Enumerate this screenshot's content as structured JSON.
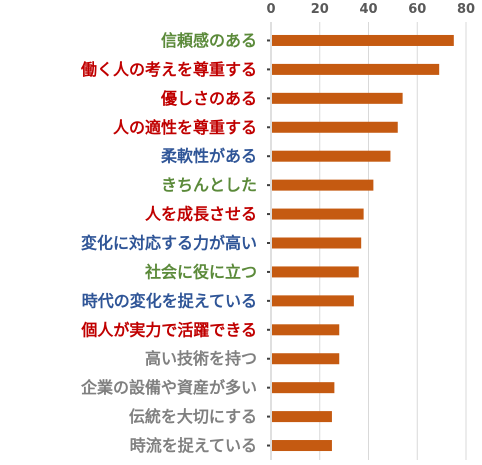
{
  "chart_data": {
    "type": "bar",
    "orientation": "horizontal",
    "title": "",
    "xlabel": "",
    "ylabel": "",
    "xlim": [
      0,
      80
    ],
    "x_ticks": [
      "0",
      "20",
      "40",
      "60",
      "80"
    ],
    "grid": true,
    "categories": [
      "信頼感のある",
      "働く人の考えを尊重する",
      "優しさのある",
      "人の適性を尊重する",
      "柔軟性がある",
      "きちんとした",
      "人を成長させる",
      "変化に対応する力が高い",
      "社会に役に立つ",
      "時代の変化を捉えている",
      "個人が実力で活躍できる",
      "高い技術を持つ",
      "企業の設備や資産が多い",
      "伝統を大切にする",
      "時流を捉えている"
    ],
    "values": [
      75,
      69,
      54,
      52,
      49,
      42,
      38,
      37,
      36,
      34,
      28,
      28,
      26,
      25,
      25
    ],
    "label_colors": [
      "#5b8a3a",
      "#c00000",
      "#c00000",
      "#c00000",
      "#2f5597",
      "#5b8a3a",
      "#c00000",
      "#2f5597",
      "#5b8a3a",
      "#2f5597",
      "#c00000",
      "#808080",
      "#808080",
      "#808080",
      "#808080"
    ],
    "bar_color": "#c55a11",
    "gridline_color": "#d9d9d9",
    "tick_label_color": "#595959"
  }
}
